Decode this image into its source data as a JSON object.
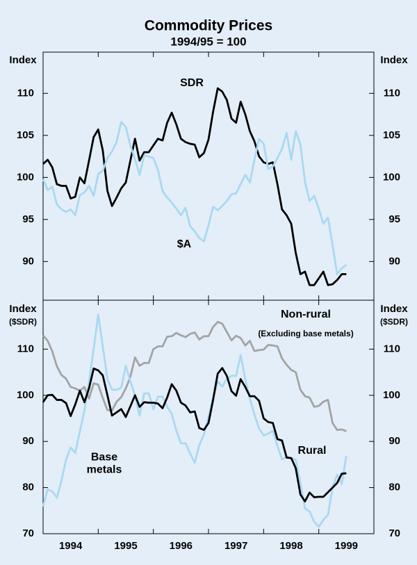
{
  "chart_data": [
    {
      "type": "line",
      "title": "Commodity Prices",
      "subtitle": "1994/95 = 100",
      "y_label": "Index",
      "x": [
        1994,
        1994.083,
        1994.167,
        1994.25,
        1994.333,
        1994.417,
        1994.5,
        1994.583,
        1994.667,
        1994.75,
        1994.833,
        1994.917,
        1995,
        1995.083,
        1995.167,
        1995.25,
        1995.333,
        1995.417,
        1995.5,
        1995.583,
        1995.667,
        1995.75,
        1995.833,
        1995.917,
        1996,
        1996.083,
        1996.167,
        1996.25,
        1996.333,
        1996.417,
        1996.5,
        1996.583,
        1996.667,
        1996.75,
        1996.833,
        1996.917,
        1997,
        1997.083,
        1997.167,
        1997.25,
        1997.333,
        1997.417,
        1997.5,
        1997.583,
        1997.667,
        1997.75,
        1997.833,
        1997.917,
        1998,
        1998.083,
        1998.167,
        1998.25,
        1998.333,
        1998.417,
        1998.5,
        1998.583,
        1998.667,
        1998.75,
        1998.833,
        1998.917,
        1999,
        1999.083,
        1999.167,
        1999.25,
        1999.333,
        1999.417,
        1999.5
      ],
      "xlim": [
        1994,
        2000
      ],
      "xticks": [
        {
          "value": 1994.5,
          "label": "1994"
        },
        {
          "value": 1995.5,
          "label": "1995"
        },
        {
          "value": 1996.5,
          "label": "1996"
        },
        {
          "value": 1997.5,
          "label": "1997"
        },
        {
          "value": 1998.5,
          "label": "1998"
        },
        {
          "value": 1999.5,
          "label": "1999"
        }
      ],
      "xminorticks": [
        1995,
        1996,
        1997,
        1998,
        1999
      ],
      "ylim": [
        85.4,
        114.9
      ],
      "yticks": [
        90,
        95,
        100,
        105,
        110
      ],
      "grid": false,
      "series": [
        {
          "name": "SDR",
          "color": "#000000",
          "values": [
            101.6,
            102.1,
            101.2,
            99.2,
            99.0,
            99.0,
            97.5,
            97.7,
            100.0,
            99.3,
            102.0,
            104.8,
            105.7,
            103.2,
            98.4,
            96.6,
            97.6,
            98.7,
            99.4,
            102.0,
            104.6,
            102.0,
            103.0,
            103.0,
            103.8,
            104.6,
            104.4,
            106.5,
            107.7,
            106.3,
            104.6,
            104.2,
            104.0,
            103.9,
            102.4,
            102.9,
            104.5,
            107.8,
            110.6,
            110.2,
            109.2,
            107.0,
            106.5,
            109.0,
            107.5,
            105.5,
            104.3,
            102.5,
            101.8,
            101.6,
            101.8,
            99.2,
            96.2,
            95.5,
            94.5,
            91.0,
            88.5,
            88.8,
            87.2,
            87.2,
            88.0,
            88.8,
            87.2,
            87.3,
            87.8,
            88.5,
            88.5
          ]
        },
        {
          "name": "$A",
          "color": "#a9d9f2",
          "values": [
            99.8,
            98.5,
            98.9,
            96.8,
            96.2,
            95.9,
            96.2,
            95.5,
            97.9,
            98.2,
            99.0,
            97.8,
            100.4,
            100.8,
            102.3,
            103.1,
            104.2,
            106.6,
            106.0,
            103.8,
            102.2,
            100.3,
            102.6,
            102.5,
            102.3,
            100.9,
            98.4,
            97.6,
            97.0,
            96.3,
            95.5,
            96.4,
            94.2,
            93.6,
            92.8,
            92.4,
            94.3,
            96.5,
            96.1,
            96.6,
            97.2,
            98.0,
            98.1,
            99.2,
            100.3,
            99.4,
            102.1,
            104.6,
            104.0,
            101.0,
            101.3,
            102.3,
            103.4,
            105.3,
            102.1,
            105.5,
            103.9,
            99.5,
            97.2,
            97.8,
            96.3,
            94.5,
            95.2,
            92.0,
            88.5,
            89.2,
            89.6
          ]
        }
      ]
    },
    {
      "type": "line",
      "y_label": "Index",
      "y_unit": "($SDR)",
      "x": [
        1994,
        1994.083,
        1994.167,
        1994.25,
        1994.333,
        1994.417,
        1994.5,
        1994.583,
        1994.667,
        1994.75,
        1994.833,
        1994.917,
        1995,
        1995.083,
        1995.167,
        1995.25,
        1995.333,
        1995.417,
        1995.5,
        1995.583,
        1995.667,
        1995.75,
        1995.833,
        1995.917,
        1996,
        1996.083,
        1996.167,
        1996.25,
        1996.333,
        1996.417,
        1996.5,
        1996.583,
        1996.667,
        1996.75,
        1996.833,
        1996.917,
        1997,
        1997.083,
        1997.167,
        1997.25,
        1997.333,
        1997.417,
        1997.5,
        1997.583,
        1997.667,
        1997.75,
        1997.833,
        1997.917,
        1998,
        1998.083,
        1998.167,
        1998.25,
        1998.333,
        1998.417,
        1998.5,
        1998.583,
        1998.667,
        1998.75,
        1998.833,
        1998.917,
        1999,
        1999.083,
        1999.167,
        1999.25,
        1999.333,
        1999.417,
        1999.5
      ],
      "xlim": [
        1994,
        2000
      ],
      "xticks": [
        {
          "value": 1994.5,
          "label": "1994"
        },
        {
          "value": 1995.5,
          "label": "1995"
        },
        {
          "value": 1996.5,
          "label": "1996"
        },
        {
          "value": 1997.5,
          "label": "1997"
        },
        {
          "value": 1998.5,
          "label": "1998"
        },
        {
          "value": 1999.5,
          "label": "1999"
        }
      ],
      "xminorticks": [
        1995,
        1996,
        1997,
        1998,
        1999
      ],
      "ylim": [
        70,
        120.6
      ],
      "yticks": [
        70,
        80,
        90,
        100,
        110
      ],
      "grid": false,
      "annotations": [
        "(Excluding base metals)"
      ],
      "series": [
        {
          "name": "Non-rural",
          "color": "#a3a3a3",
          "values": [
            113.0,
            111.8,
            109.5,
            106.3,
            104.4,
            103.6,
            101.8,
            101.5,
            101.0,
            101.8,
            99.3,
            102.6,
            102.3,
            99.4,
            96.8,
            96.7,
            98.6,
            99.6,
            101.5,
            104.0,
            108.2,
            106.4,
            107.0,
            107.0,
            110.0,
            110.6,
            110.6,
            112.7,
            112.8,
            113.5,
            113.0,
            112.6,
            113.3,
            113.6,
            112.1,
            112.8,
            112.8,
            114.8,
            115.9,
            115.5,
            113.7,
            111.9,
            112.9,
            112.4,
            110.8,
            111.8,
            109.6,
            109.8,
            109.9,
            110.9,
            110.8,
            110.6,
            108.0,
            106.6,
            105.5,
            105.0,
            101.2,
            99.8,
            99.5,
            97.5,
            97.7,
            98.6,
            99.0,
            94.0,
            92.5,
            92.6,
            92.2
          ]
        },
        {
          "name": "Base metals",
          "color": "#a9d9f2",
          "values": [
            75.9,
            79.6,
            79.2,
            77.8,
            81.5,
            86.1,
            88.7,
            87.5,
            92.2,
            96.7,
            103.0,
            110.0,
            117.5,
            110.5,
            103.5,
            101.2,
            101.2,
            101.6,
            106.4,
            103.0,
            100.0,
            95.6,
            100.4,
            100.4,
            97.0,
            99.7,
            99.7,
            97.5,
            96.0,
            92.3,
            89.6,
            89.6,
            87.4,
            85.4,
            89.2,
            91.5,
            95.3,
            99.4,
            103.0,
            101.9,
            103.5,
            104.2,
            104.2,
            108.7,
            103.4,
            99.3,
            95.8,
            92.8,
            91.3,
            91.7,
            92.3,
            89.0,
            86.1,
            86.6,
            86.3,
            86.0,
            81.0,
            75.5,
            74.8,
            72.6,
            71.5,
            73.0,
            74.1,
            80.0,
            82.8,
            80.8,
            86.9
          ]
        },
        {
          "name": "Rural",
          "color": "#000000",
          "values": [
            98.5,
            100.0,
            100.1,
            99.0,
            99.0,
            98.3,
            95.5,
            98.0,
            101.0,
            98.5,
            101.5,
            105.8,
            105.4,
            104.3,
            100.0,
            95.6,
            96.3,
            97.0,
            95.3,
            97.6,
            100.0,
            97.5,
            98.5,
            98.4,
            98.4,
            98.2,
            97.2,
            99.5,
            102.4,
            101.0,
            98.4,
            97.8,
            96.3,
            96.5,
            92.9,
            92.5,
            94.0,
            99.0,
            104.7,
            105.9,
            104.2,
            100.9,
            99.9,
            103.5,
            101.8,
            99.8,
            99.8,
            98.8,
            95.0,
            94.2,
            94.0,
            90.5,
            90.2,
            86.5,
            86.4,
            84.2,
            78.5,
            77.0,
            78.9,
            77.9,
            78.0,
            78.0,
            79.0,
            80.0,
            81.0,
            83.0,
            83.1
          ]
        }
      ]
    }
  ]
}
